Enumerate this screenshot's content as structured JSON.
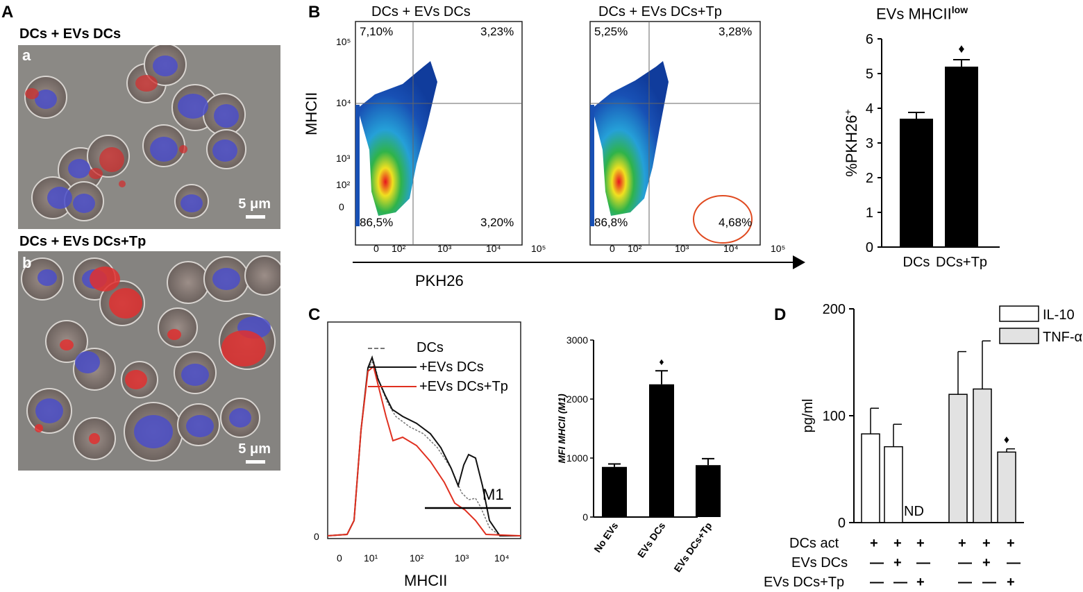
{
  "panel_a": {
    "label": "A",
    "sub_a_caption": "DCs + EVs DCs",
    "sub_a_letter": "a",
    "sub_b_caption": "DCs + EVs DCs+Tp",
    "sub_b_letter": "b",
    "scale_bar": "5 μm"
  },
  "panel_b": {
    "label": "B",
    "plot1_title": "DCs + EVs DCs",
    "plot2_title": "DCs + EVs DCs+Tp",
    "y_axis": "MHCII",
    "x_axis": "PKH26",
    "plot1_quadrants": {
      "ul": "7,10%",
      "ur": "3,23%",
      "ll": "86,5%",
      "lr": "3,20%"
    },
    "plot2_quadrants": {
      "ul": "5,25%",
      "ur": "3,28%",
      "ll": "86,8%",
      "lr": "4,68%"
    },
    "y_ticks": [
      "10⁵",
      "10⁴",
      "10³",
      "10²",
      "0"
    ],
    "x_ticks": [
      "0",
      "10²",
      "10³",
      "10⁴",
      "10⁵"
    ]
  },
  "panel_c": {
    "label": "C",
    "legend": [
      "DCs",
      "+EVs DCs",
      "+EVs DCs+Tp"
    ],
    "x_axis": "MHCII",
    "gate": "M1",
    "x_ticks": [
      "0",
      "10¹",
      "10²",
      "10³",
      "10⁴"
    ],
    "y_zero": "0"
  },
  "panel_d": {
    "label": "D",
    "row_labels": [
      "DCs act",
      "EVs DCs",
      "EVs DCs+Tp"
    ],
    "rows": [
      [
        "+",
        "+",
        "+",
        "+",
        "+",
        "+"
      ],
      [
        "—",
        "+",
        "—",
        "—",
        "+",
        "—"
      ],
      [
        "—",
        "—",
        "+",
        "—",
        "—",
        "+"
      ]
    ],
    "nd": "ND"
  },
  "chart_data": [
    {
      "type": "bar",
      "title": "EVs MHCIIlow",
      "title_main": "EVs MHCII",
      "title_sup": "low",
      "ylabel": "%PKH26+",
      "categories": [
        "DCs",
        "DCs+Tp"
      ],
      "values": [
        3.7,
        5.2
      ],
      "errors": [
        0.18,
        0.2
      ],
      "significant": [
        false,
        true
      ],
      "ylim": [
        0,
        6
      ],
      "yticks": [
        0,
        1,
        2,
        3,
        4,
        5,
        6
      ]
    },
    {
      "type": "bar",
      "title": "",
      "ylabel": "MFI MHCII (M1)",
      "categories": [
        "No EVs",
        "EVs DCs",
        "EVs DCs+Tp"
      ],
      "values": [
        850,
        2250,
        880
      ],
      "errors": [
        50,
        230,
        110
      ],
      "significant": [
        false,
        true,
        false
      ],
      "ylim": [
        0,
        3000
      ],
      "yticks": [
        0,
        1000,
        2000,
        3000
      ]
    },
    {
      "type": "bar",
      "title": "",
      "ylabel": "pg/ml",
      "series": [
        {
          "name": "IL-10",
          "color": "#ffffff",
          "values": [
            83,
            71,
            0
          ],
          "errors": [
            24,
            21,
            0
          ]
        },
        {
          "name": "TNF-α",
          "color": "#e2e2e2",
          "values": [
            120,
            125,
            66
          ],
          "errors": [
            40,
            45,
            3
          ]
        }
      ],
      "significant_index": 5,
      "ylim": [
        0,
        200
      ],
      "yticks": [
        0,
        100,
        200
      ]
    }
  ]
}
